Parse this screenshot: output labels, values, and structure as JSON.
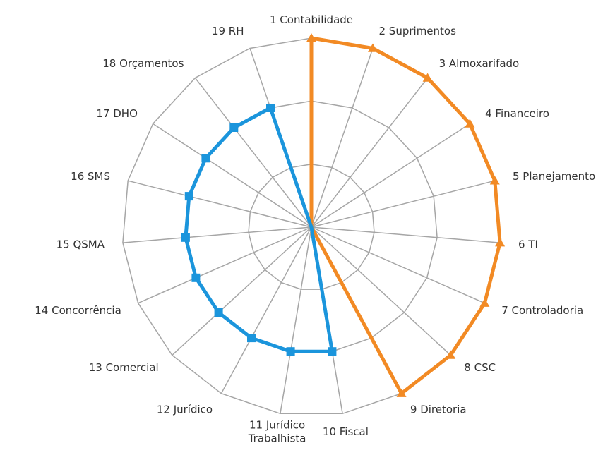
{
  "chart_data": {
    "type": "radar",
    "categories": [
      "1 Contabilidade",
      "2 Suprimentos",
      "3 Almoxarifado",
      "4 Financeiro",
      "5 Planejamento",
      "6 TI",
      "7 Controladoria",
      "8 CSC",
      "9 Diretoria",
      "10 Fiscal",
      "11 Jurídico\nTrabalhista",
      "12 Jurídico",
      "13 Comercial",
      "14 Concorrência",
      "15 QSMA",
      "16 SMS",
      "17 DHO",
      "18 Orçamentos",
      "19 RH"
    ],
    "rlim": [
      0,
      3
    ],
    "grid": true,
    "legend": "none",
    "series": [
      {
        "color": "#f28a24",
        "marker": "triangle",
        "values": [
          3,
          3,
          3,
          3,
          3,
          3,
          3,
          3,
          3,
          0,
          0,
          0,
          0,
          0,
          0,
          0,
          0,
          0,
          0
        ]
      },
      {
        "color": "#1b95dc",
        "marker": "square",
        "values": [
          0,
          0,
          0,
          0,
          0,
          0,
          0,
          0,
          0,
          2,
          2,
          2,
          2,
          2,
          2,
          2,
          2,
          2,
          2
        ]
      }
    ]
  }
}
